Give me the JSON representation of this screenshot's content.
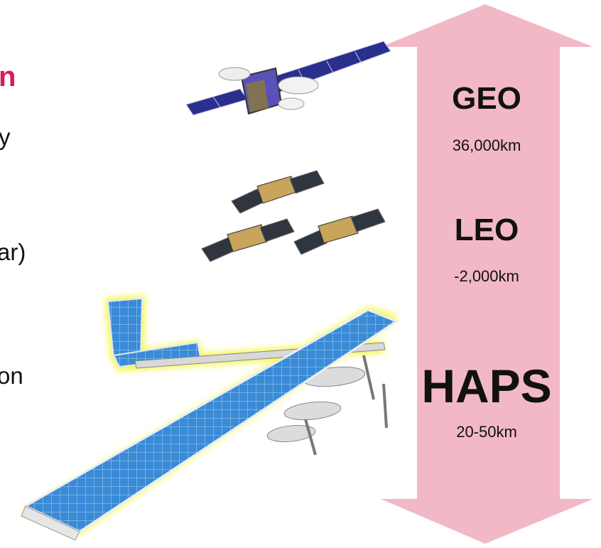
{
  "left_text_fragments": [
    {
      "id": "frag-1",
      "text": "n",
      "accent": true
    },
    {
      "id": "frag-2",
      "text": "y",
      "accent": false
    },
    {
      "id": "frag-3",
      "text": "ar)",
      "accent": false
    },
    {
      "id": "frag-4",
      "text": "on",
      "accent": false
    }
  ],
  "orbits": [
    {
      "name": "GEO",
      "altitude": "36,000km"
    },
    {
      "name": "LEO",
      "altitude": "-2,000km"
    },
    {
      "name": "HAPS",
      "altitude": "20-50km"
    }
  ],
  "colors": {
    "arrow_fill": "#f2b8c6",
    "accent_text": "#d81b60",
    "solar_panel": "#2f7fc8",
    "glow": "#f5f53a"
  },
  "icons": [
    "geo-satellite-icon",
    "leo-satellite-icon",
    "haps-aircraft-icon"
  ]
}
